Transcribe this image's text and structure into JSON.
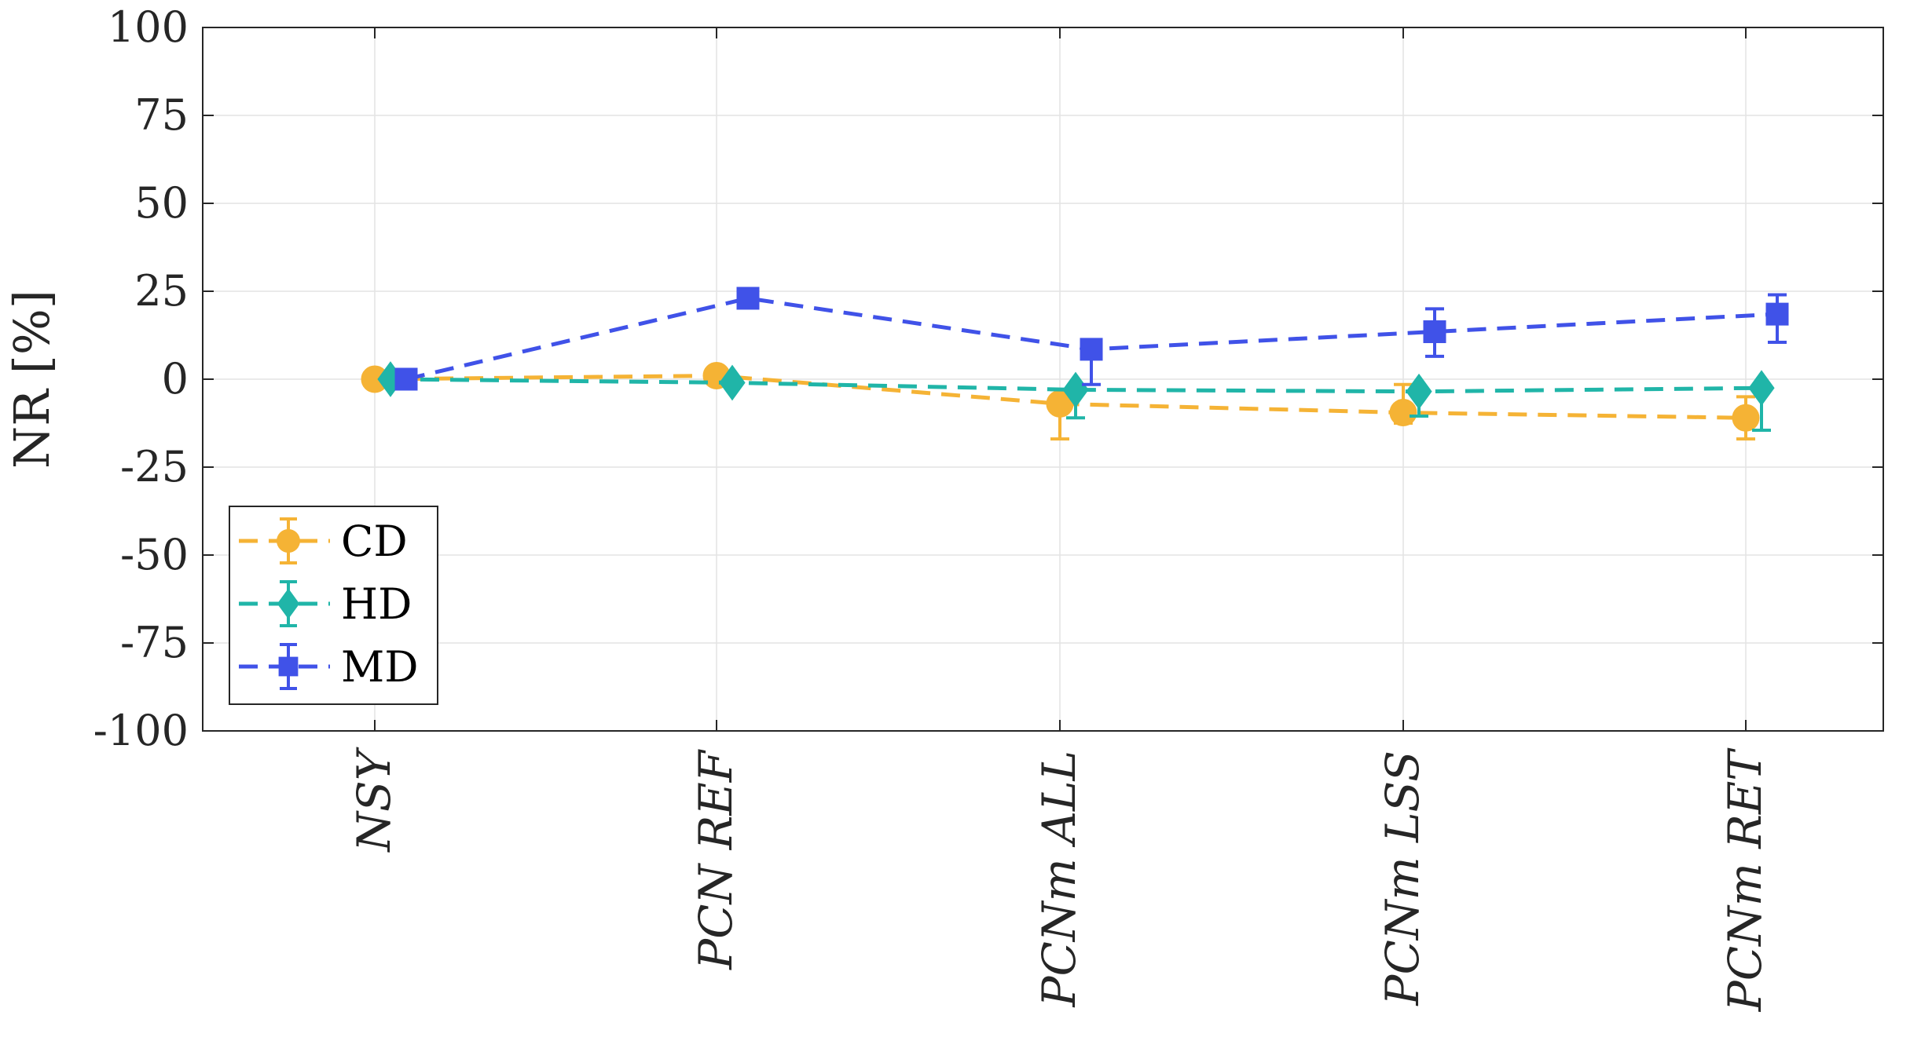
{
  "chart_data": {
    "type": "line",
    "title": "",
    "xlabel": "",
    "ylabel": "NR [%]",
    "ylim": [
      -100,
      100
    ],
    "yticks": [
      100,
      75,
      50,
      25,
      0,
      -25,
      -50,
      -75,
      -100
    ],
    "ytick_labels": [
      "100",
      "75",
      "50",
      "25",
      "0",
      "-25",
      "-50",
      "-75",
      "-100"
    ],
    "categories": [
      "NSY",
      "PCN REF",
      "PCNm ALL",
      "PCNm LSS",
      "PCNm RET"
    ],
    "grid": true,
    "legend_position": "bottom-left",
    "line_style": "dashed",
    "error_bars": true,
    "series": [
      {
        "name": "CD",
        "marker": "circle",
        "color": "#F5B335",
        "values": [
          0,
          1,
          -7,
          -9.5,
          -11
        ],
        "err_low": [
          0,
          2,
          10,
          3,
          6
        ],
        "err_high": [
          0,
          2,
          4,
          8,
          6
        ]
      },
      {
        "name": "HD",
        "marker": "diamond",
        "color": "#20B5A8",
        "values": [
          0,
          -1,
          -3,
          -3.5,
          -2.5
        ],
        "err_low": [
          0,
          0,
          8,
          7,
          12
        ],
        "err_high": [
          0,
          0,
          0,
          0,
          0
        ]
      },
      {
        "name": "MD",
        "marker": "square",
        "color": "#4052E8",
        "values": [
          0,
          23,
          8.5,
          13.5,
          18.5
        ],
        "err_low": [
          0,
          1.5,
          10,
          7,
          8
        ],
        "err_high": [
          0,
          1.5,
          1,
          6.5,
          5.5
        ]
      }
    ]
  }
}
